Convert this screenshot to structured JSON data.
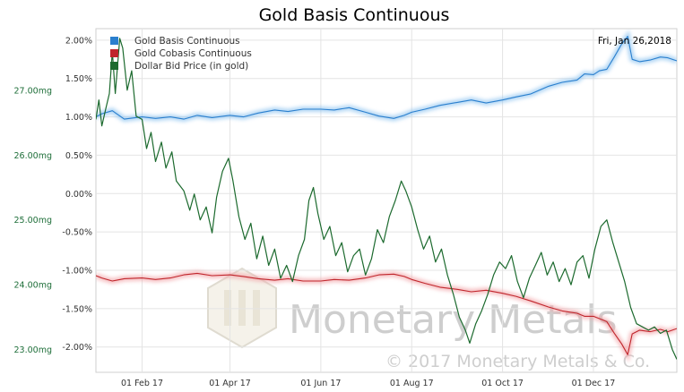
{
  "chart_data": {
    "type": "line",
    "title": "Gold Basis Continuous",
    "date_label": "Fri, Jan 26,2018",
    "x_ticks": [
      "01 Feb 17",
      "01 Apr 17",
      "01 Jun 17",
      "01 Aug 17",
      "01 Oct 17",
      "01 Dec 17"
    ],
    "x_range": [
      "2017-01-01",
      "2018-01-26"
    ],
    "left_axis": {
      "ticks": [
        "23.00mg",
        "24.00mg",
        "25.00mg",
        "26.00mg",
        "27.00mg"
      ],
      "range": [
        22.65,
        27.95
      ],
      "color": "#1f6f3a"
    },
    "right_axis": {
      "ticks": [
        "-2.00%",
        "-1.50%",
        "-1.00%",
        "-0.50%",
        "0.00%",
        "0.50%",
        "1.00%",
        "1.50%",
        "2.00%"
      ],
      "range": [
        -2.33,
        2.15
      ]
    },
    "grid": true,
    "legend_position": "top-left",
    "series": [
      {
        "name": "Gold Basis Continuous",
        "color": "#2a7fce",
        "axis": "right",
        "points": [
          [
            "2017-01-01",
            1.0
          ],
          [
            "2017-01-05",
            1.04
          ],
          [
            "2017-01-12",
            1.08
          ],
          [
            "2017-01-20",
            0.97
          ],
          [
            "2017-02-01",
            1.0
          ],
          [
            "2017-02-10",
            0.98
          ],
          [
            "2017-02-20",
            1.0
          ],
          [
            "2017-03-01",
            0.97
          ],
          [
            "2017-03-10",
            1.02
          ],
          [
            "2017-03-20",
            0.99
          ],
          [
            "2017-04-01",
            1.02
          ],
          [
            "2017-04-10",
            1.0
          ],
          [
            "2017-04-20",
            1.05
          ],
          [
            "2017-05-01",
            1.09
          ],
          [
            "2017-05-10",
            1.07
          ],
          [
            "2017-05-20",
            1.1
          ],
          [
            "2017-06-01",
            1.1
          ],
          [
            "2017-06-10",
            1.09
          ],
          [
            "2017-06-20",
            1.12
          ],
          [
            "2017-07-01",
            1.06
          ],
          [
            "2017-07-10",
            1.01
          ],
          [
            "2017-07-20",
            0.98
          ],
          [
            "2017-07-27",
            1.02
          ],
          [
            "2017-08-01",
            1.06
          ],
          [
            "2017-08-10",
            1.1
          ],
          [
            "2017-08-20",
            1.15
          ],
          [
            "2017-09-01",
            1.19
          ],
          [
            "2017-09-10",
            1.22
          ],
          [
            "2017-09-20",
            1.18
          ],
          [
            "2017-10-01",
            1.22
          ],
          [
            "2017-10-10",
            1.26
          ],
          [
            "2017-10-20",
            1.3
          ],
          [
            "2017-11-01",
            1.4
          ],
          [
            "2017-11-10",
            1.45
          ],
          [
            "2017-11-20",
            1.48
          ],
          [
            "2017-11-25",
            1.56
          ],
          [
            "2017-12-01",
            1.55
          ],
          [
            "2017-12-05",
            1.6
          ],
          [
            "2017-12-10",
            1.62
          ],
          [
            "2017-12-15",
            1.78
          ],
          [
            "2017-12-20",
            1.95
          ],
          [
            "2017-12-24",
            2.05
          ],
          [
            "2017-12-27",
            1.75
          ],
          [
            "2018-01-01",
            1.72
          ],
          [
            "2018-01-08",
            1.74
          ],
          [
            "2018-01-15",
            1.78
          ],
          [
            "2018-01-20",
            1.77
          ],
          [
            "2018-01-26",
            1.73
          ]
        ]
      },
      {
        "name": "Gold Cobasis Continuous",
        "color": "#c0262c",
        "axis": "right",
        "points": [
          [
            "2017-01-01",
            -1.07
          ],
          [
            "2017-01-05",
            -1.1
          ],
          [
            "2017-01-12",
            -1.14
          ],
          [
            "2017-01-20",
            -1.11
          ],
          [
            "2017-02-01",
            -1.1
          ],
          [
            "2017-02-10",
            -1.12
          ],
          [
            "2017-02-20",
            -1.1
          ],
          [
            "2017-03-01",
            -1.06
          ],
          [
            "2017-03-10",
            -1.04
          ],
          [
            "2017-03-20",
            -1.07
          ],
          [
            "2017-04-01",
            -1.06
          ],
          [
            "2017-04-10",
            -1.08
          ],
          [
            "2017-04-20",
            -1.11
          ],
          [
            "2017-05-01",
            -1.13
          ],
          [
            "2017-05-10",
            -1.11
          ],
          [
            "2017-05-20",
            -1.14
          ],
          [
            "2017-06-01",
            -1.14
          ],
          [
            "2017-06-10",
            -1.12
          ],
          [
            "2017-06-20",
            -1.13
          ],
          [
            "2017-07-01",
            -1.1
          ],
          [
            "2017-07-10",
            -1.06
          ],
          [
            "2017-07-20",
            -1.05
          ],
          [
            "2017-07-27",
            -1.08
          ],
          [
            "2017-08-01",
            -1.12
          ],
          [
            "2017-08-10",
            -1.17
          ],
          [
            "2017-08-20",
            -1.22
          ],
          [
            "2017-09-01",
            -1.25
          ],
          [
            "2017-09-10",
            -1.28
          ],
          [
            "2017-09-20",
            -1.26
          ],
          [
            "2017-10-01",
            -1.3
          ],
          [
            "2017-10-10",
            -1.34
          ],
          [
            "2017-10-20",
            -1.4
          ],
          [
            "2017-11-01",
            -1.48
          ],
          [
            "2017-11-10",
            -1.53
          ],
          [
            "2017-11-20",
            -1.56
          ],
          [
            "2017-11-25",
            -1.6
          ],
          [
            "2017-12-01",
            -1.6
          ],
          [
            "2017-12-05",
            -1.63
          ],
          [
            "2017-12-10",
            -1.67
          ],
          [
            "2017-12-15",
            -1.82
          ],
          [
            "2017-12-20",
            -1.96
          ],
          [
            "2017-12-24",
            -2.1
          ],
          [
            "2017-12-27",
            -1.83
          ],
          [
            "2018-01-01",
            -1.78
          ],
          [
            "2018-01-08",
            -1.8
          ],
          [
            "2018-01-15",
            -1.77
          ],
          [
            "2018-01-20",
            -1.8
          ],
          [
            "2018-01-26",
            -1.76
          ]
        ]
      },
      {
        "name": "Dollar Bid Price (in gold)",
        "color": "#1c6a2e",
        "axis": "left",
        "points": [
          [
            "2017-01-01",
            26.55
          ],
          [
            "2017-01-03",
            26.85
          ],
          [
            "2017-01-05",
            26.45
          ],
          [
            "2017-01-08",
            26.75
          ],
          [
            "2017-01-10",
            26.95
          ],
          [
            "2017-01-12",
            27.6
          ],
          [
            "2017-01-14",
            26.95
          ],
          [
            "2017-01-17",
            27.8
          ],
          [
            "2017-01-19",
            27.65
          ],
          [
            "2017-01-22",
            27.0
          ],
          [
            "2017-01-25",
            27.3
          ],
          [
            "2017-01-28",
            26.6
          ],
          [
            "2017-02-01",
            26.55
          ],
          [
            "2017-02-04",
            26.1
          ],
          [
            "2017-02-07",
            26.35
          ],
          [
            "2017-02-10",
            25.9
          ],
          [
            "2017-02-14",
            26.2
          ],
          [
            "2017-02-17",
            25.8
          ],
          [
            "2017-02-21",
            26.05
          ],
          [
            "2017-02-24",
            25.6
          ],
          [
            "2017-03-01",
            25.45
          ],
          [
            "2017-03-05",
            25.15
          ],
          [
            "2017-03-08",
            25.4
          ],
          [
            "2017-03-12",
            25.0
          ],
          [
            "2017-03-16",
            25.2
          ],
          [
            "2017-03-20",
            24.8
          ],
          [
            "2017-03-23",
            25.35
          ],
          [
            "2017-03-27",
            25.75
          ],
          [
            "2017-03-31",
            25.95
          ],
          [
            "2017-04-03",
            25.6
          ],
          [
            "2017-04-07",
            25.05
          ],
          [
            "2017-04-11",
            24.7
          ],
          [
            "2017-04-15",
            24.95
          ],
          [
            "2017-04-19",
            24.4
          ],
          [
            "2017-04-23",
            24.75
          ],
          [
            "2017-04-27",
            24.3
          ],
          [
            "2017-05-01",
            24.55
          ],
          [
            "2017-05-05",
            24.1
          ],
          [
            "2017-05-09",
            24.3
          ],
          [
            "2017-05-13",
            24.05
          ],
          [
            "2017-05-17",
            24.45
          ],
          [
            "2017-05-21",
            24.7
          ],
          [
            "2017-05-24",
            25.3
          ],
          [
            "2017-05-27",
            25.5
          ],
          [
            "2017-05-30",
            25.1
          ],
          [
            "2017-06-03",
            24.7
          ],
          [
            "2017-06-07",
            24.9
          ],
          [
            "2017-06-11",
            24.45
          ],
          [
            "2017-06-15",
            24.65
          ],
          [
            "2017-06-19",
            24.2
          ],
          [
            "2017-06-23",
            24.45
          ],
          [
            "2017-06-27",
            24.55
          ],
          [
            "2017-07-01",
            24.15
          ],
          [
            "2017-07-05",
            24.4
          ],
          [
            "2017-07-09",
            24.85
          ],
          [
            "2017-07-13",
            24.65
          ],
          [
            "2017-07-17",
            25.05
          ],
          [
            "2017-07-21",
            25.3
          ],
          [
            "2017-07-25",
            25.6
          ],
          [
            "2017-07-28",
            25.45
          ],
          [
            "2017-08-01",
            25.2
          ],
          [
            "2017-08-05",
            24.85
          ],
          [
            "2017-08-09",
            24.55
          ],
          [
            "2017-08-13",
            24.75
          ],
          [
            "2017-08-17",
            24.35
          ],
          [
            "2017-08-21",
            24.55
          ],
          [
            "2017-08-25",
            24.15
          ],
          [
            "2017-08-29",
            23.85
          ],
          [
            "2017-09-02",
            23.5
          ],
          [
            "2017-09-06",
            23.3
          ],
          [
            "2017-09-09",
            23.1
          ],
          [
            "2017-09-13",
            23.4
          ],
          [
            "2017-09-17",
            23.6
          ],
          [
            "2017-09-21",
            23.85
          ],
          [
            "2017-09-25",
            24.15
          ],
          [
            "2017-09-29",
            24.35
          ],
          [
            "2017-10-03",
            24.25
          ],
          [
            "2017-10-07",
            24.45
          ],
          [
            "2017-10-11",
            24.05
          ],
          [
            "2017-10-15",
            23.8
          ],
          [
            "2017-10-19",
            24.1
          ],
          [
            "2017-10-23",
            24.3
          ],
          [
            "2017-10-27",
            24.5
          ],
          [
            "2017-10-31",
            24.15
          ],
          [
            "2017-11-04",
            24.35
          ],
          [
            "2017-11-08",
            24.05
          ],
          [
            "2017-11-12",
            24.25
          ],
          [
            "2017-11-16",
            24.0
          ],
          [
            "2017-11-20",
            24.35
          ],
          [
            "2017-11-24",
            24.45
          ],
          [
            "2017-11-28",
            24.1
          ],
          [
            "2017-12-02",
            24.55
          ],
          [
            "2017-12-06",
            24.9
          ],
          [
            "2017-12-10",
            25.0
          ],
          [
            "2017-12-14",
            24.65
          ],
          [
            "2017-12-18",
            24.35
          ],
          [
            "2017-12-22",
            24.05
          ],
          [
            "2017-12-26",
            23.65
          ],
          [
            "2017-12-30",
            23.4
          ],
          [
            "2018-01-03",
            23.35
          ],
          [
            "2018-01-07",
            23.3
          ],
          [
            "2018-01-11",
            23.35
          ],
          [
            "2018-01-15",
            23.25
          ],
          [
            "2018-01-19",
            23.3
          ],
          [
            "2018-01-23",
            23.0
          ],
          [
            "2018-01-26",
            22.85
          ]
        ]
      }
    ]
  },
  "watermark": {
    "brand": "Monetary Metals",
    "copyright": "© 2017 Monetary Metals & Co."
  }
}
